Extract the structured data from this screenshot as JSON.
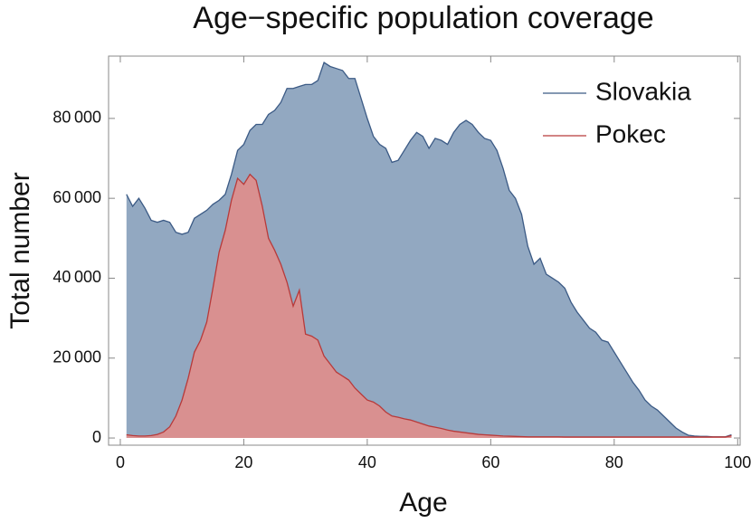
{
  "chart_data": {
    "type": "area",
    "title": "Age−specific population coverage",
    "x_label": "Age",
    "y_label": "Total number",
    "x": [
      1,
      2,
      3,
      4,
      5,
      6,
      7,
      8,
      9,
      10,
      11,
      12,
      13,
      14,
      15,
      16,
      17,
      18,
      19,
      20,
      21,
      22,
      23,
      24,
      25,
      26,
      27,
      28,
      29,
      30,
      31,
      32,
      33,
      34,
      35,
      36,
      37,
      38,
      39,
      40,
      41,
      42,
      43,
      44,
      45,
      46,
      47,
      48,
      49,
      50,
      51,
      52,
      53,
      54,
      55,
      56,
      57,
      58,
      59,
      60,
      61,
      62,
      63,
      64,
      65,
      66,
      67,
      68,
      69,
      70,
      71,
      72,
      73,
      74,
      75,
      76,
      77,
      78,
      79,
      80,
      81,
      82,
      83,
      84,
      85,
      86,
      87,
      88,
      89,
      90,
      91,
      92,
      93,
      94,
      95,
      96,
      97,
      98,
      99
    ],
    "series": [
      {
        "name": "Slovakia",
        "color": "#3b5a85",
        "fill": "#92a8c1",
        "values": [
          61000,
          58000,
          60000,
          57500,
          54500,
          54000,
          54500,
          54000,
          51500,
          51000,
          51500,
          55000,
          56000,
          57000,
          58500,
          59500,
          61000,
          66000,
          72000,
          73500,
          77000,
          78500,
          78500,
          81000,
          82000,
          84000,
          87500,
          87500,
          88000,
          88500,
          88500,
          89500,
          94000,
          93000,
          92500,
          92000,
          90000,
          90000,
          85000,
          80000,
          75500,
          73500,
          72500,
          69000,
          69500,
          72000,
          74500,
          76500,
          75500,
          72500,
          75000,
          74500,
          73500,
          76500,
          78500,
          79500,
          78500,
          76500,
          75000,
          74500,
          72000,
          67500,
          62000,
          60000,
          56000,
          48000,
          43500,
          45000,
          41000,
          40000,
          39000,
          37500,
          34000,
          31500,
          29500,
          27500,
          26500,
          24500,
          24000,
          21500,
          19000,
          16500,
          14000,
          12000,
          9500,
          8000,
          7000,
          5500,
          4000,
          2500,
          1500,
          700,
          500,
          400,
          400,
          300,
          300,
          300,
          800
        ]
      },
      {
        "name": "Pokec",
        "color": "#b83a3a",
        "fill": "#d99090",
        "values": [
          800,
          600,
          500,
          500,
          600,
          900,
          1500,
          2800,
          5500,
          9500,
          15000,
          21500,
          24500,
          29000,
          37500,
          46500,
          52000,
          59500,
          65000,
          63500,
          66000,
          64500,
          58000,
          50000,
          47000,
          43500,
          39000,
          33000,
          37000,
          26000,
          25500,
          24500,
          20500,
          18500,
          16500,
          15500,
          14500,
          12500,
          11000,
          9500,
          9000,
          8000,
          6500,
          5500,
          5200,
          4800,
          4500,
          4000,
          3500,
          3000,
          2700,
          2400,
          2000,
          1700,
          1500,
          1300,
          1100,
          900,
          800,
          700,
          600,
          500,
          450,
          400,
          350,
          300,
          300,
          300,
          300,
          300,
          300,
          250,
          250,
          250,
          250,
          250,
          250,
          250,
          250,
          250,
          250,
          250,
          250,
          250,
          250,
          250,
          250,
          250,
          250,
          250,
          250,
          250,
          250,
          250,
          250,
          250,
          250,
          250,
          600
        ]
      }
    ],
    "xlim": [
      -1.9,
      100.4
    ],
    "ylim": [
      -1800,
      95600
    ],
    "xticks": [
      0,
      20,
      40,
      60,
      80,
      100
    ],
    "yticks": [
      0,
      {
        "value": 20000,
        "label": "20 000"
      },
      {
        "value": 40000,
        "label": "40 000"
      },
      {
        "value": 60000,
        "label": "60 000"
      },
      {
        "value": 80000,
        "label": "80 000"
      }
    ],
    "legend": "top-right"
  }
}
